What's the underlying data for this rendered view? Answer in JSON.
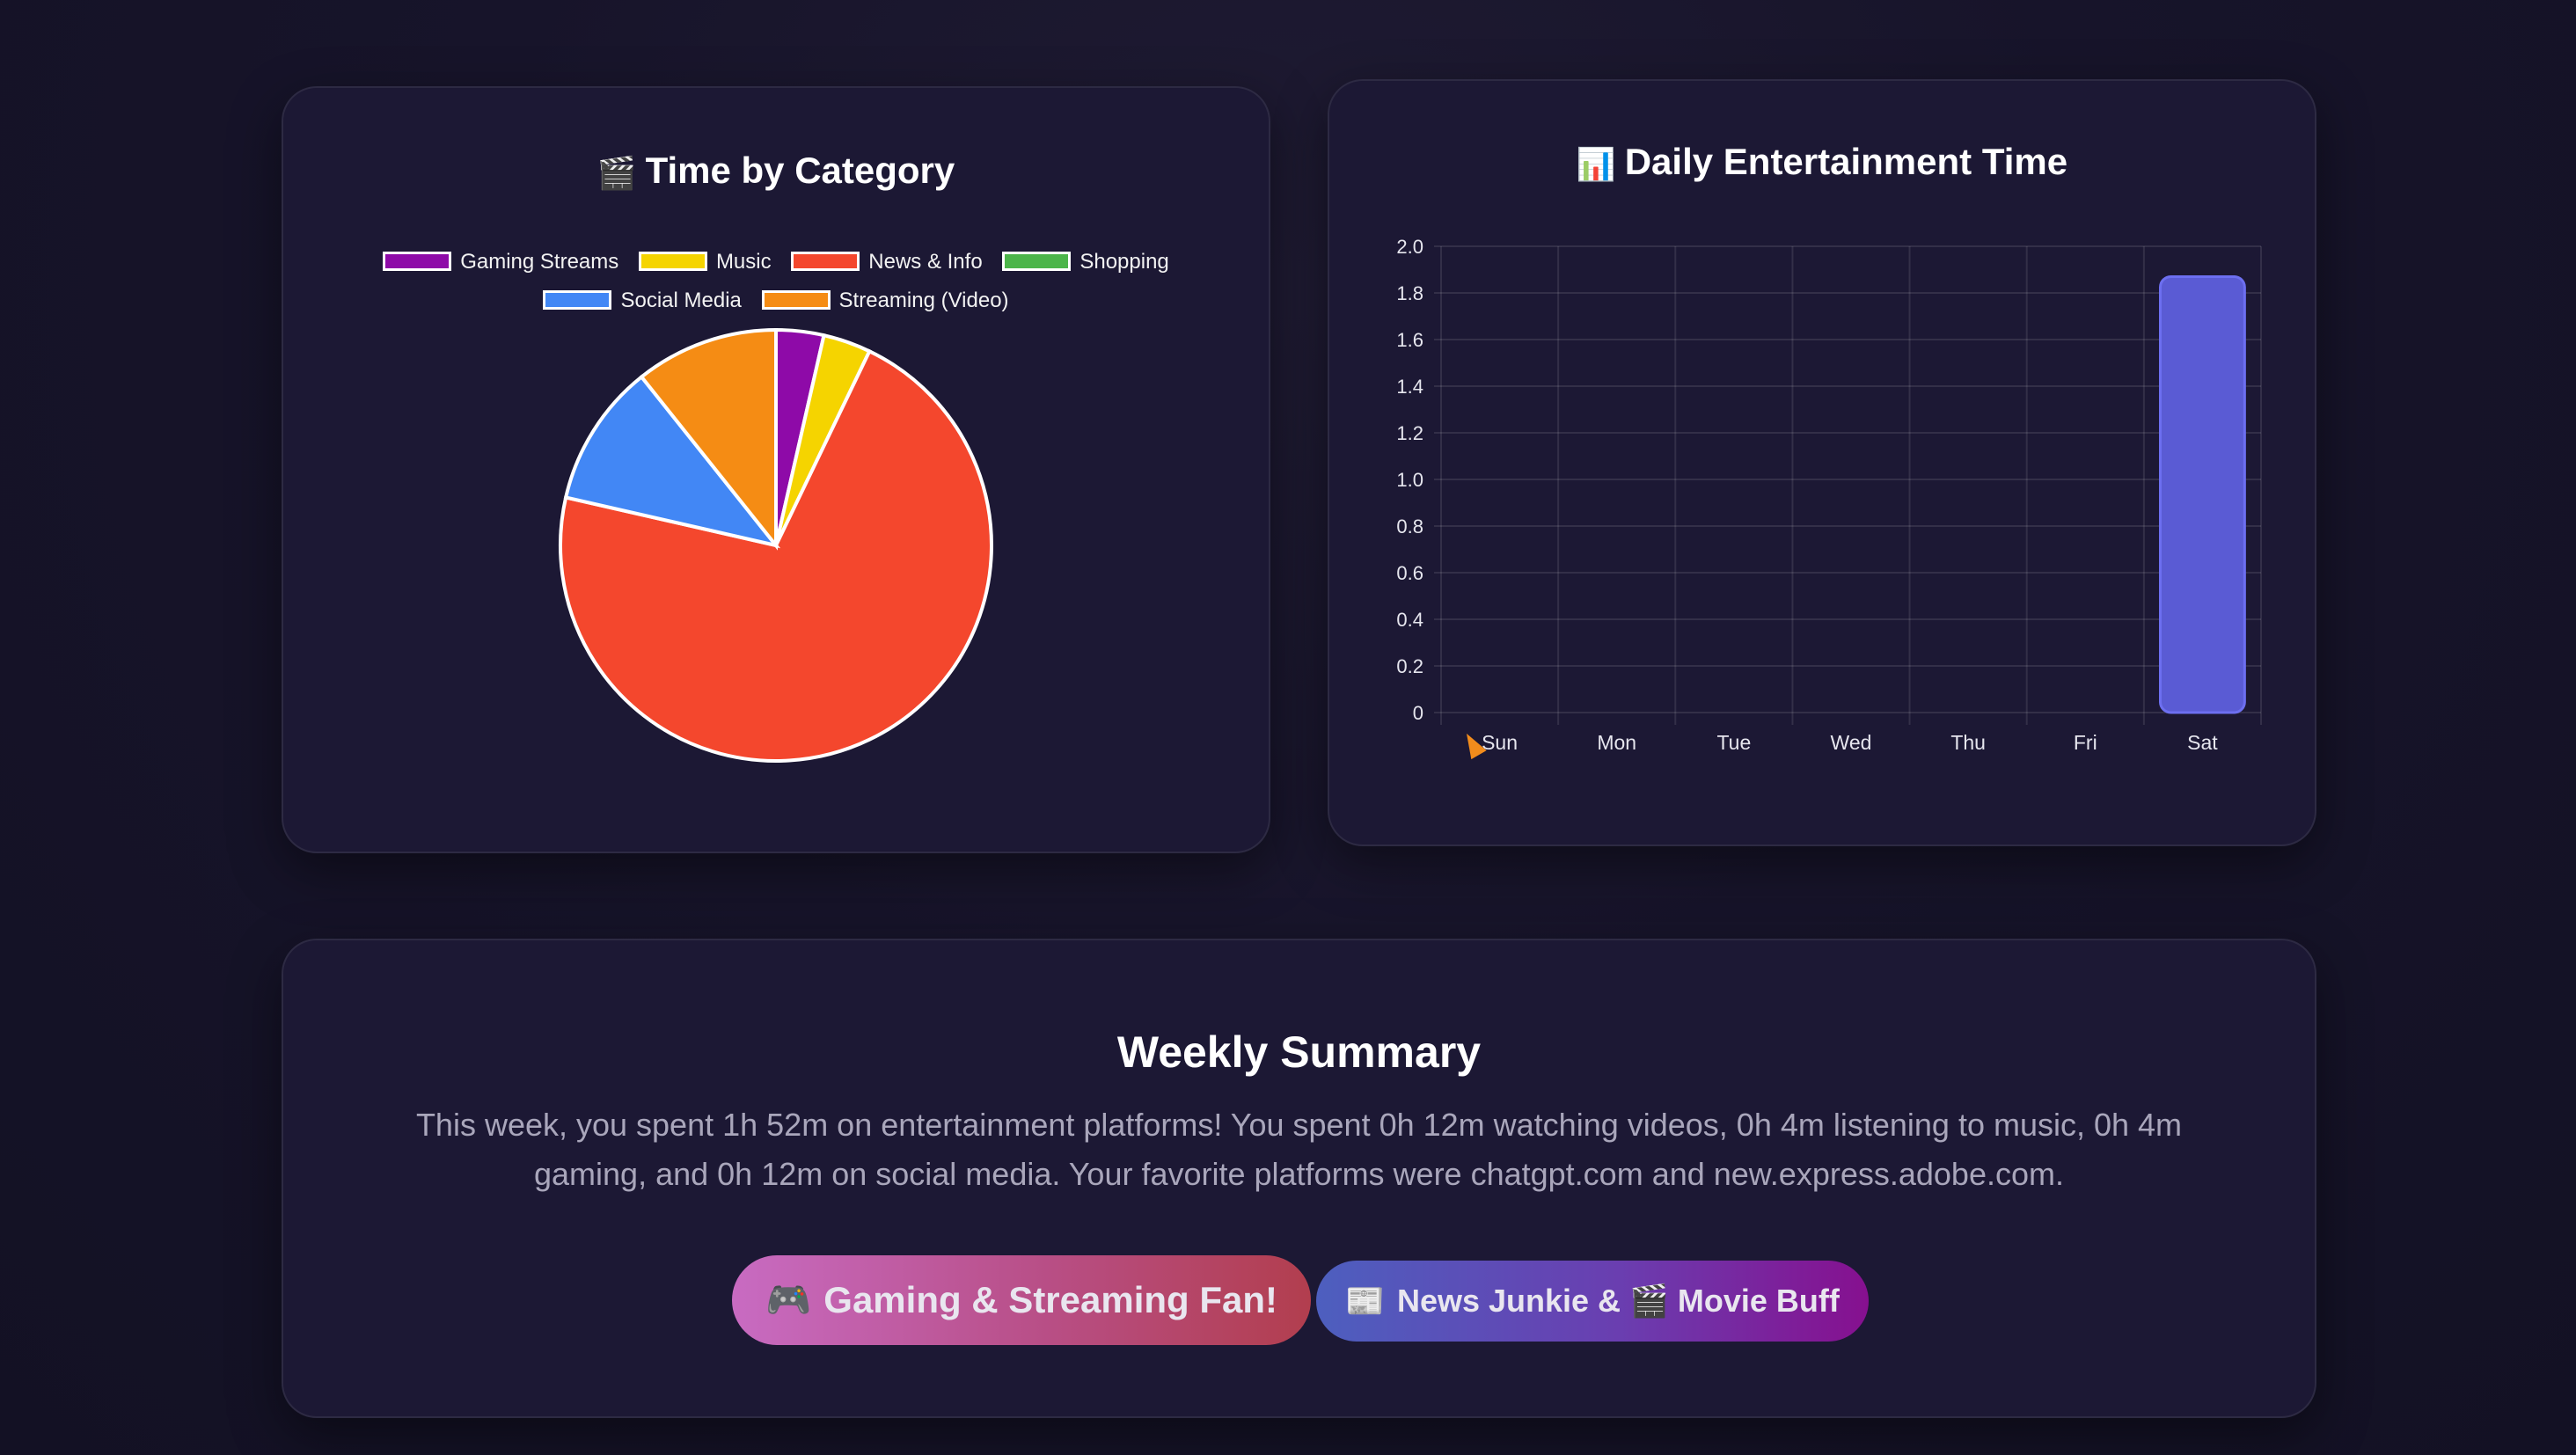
{
  "pie_card": {
    "title": "Time by Category",
    "title_icon": "🎬",
    "legend": [
      {
        "label": "Gaming Streams",
        "color": "#8e0aa8"
      },
      {
        "label": "Music",
        "color": "#f5d400"
      },
      {
        "label": "News & Info",
        "color": "#f4472d"
      },
      {
        "label": "Shopping",
        "color": "#4cb54a"
      },
      {
        "label": "Social Media",
        "color": "#4287f5"
      },
      {
        "label": "Streaming (Video)",
        "color": "#f58c14"
      }
    ]
  },
  "bar_card": {
    "title": "Daily Entertainment Time",
    "title_icon": "📊"
  },
  "chart_data": [
    {
      "type": "pie",
      "title": "Time by Category",
      "categories": [
        "Gaming Streams",
        "Music",
        "News & Info",
        "Shopping",
        "Social Media",
        "Streaming (Video)"
      ],
      "values": [
        4,
        4,
        80,
        0,
        12,
        12
      ],
      "colors": [
        "#8e0aa8",
        "#f5d400",
        "#f4472d",
        "#4cb54a",
        "#4287f5",
        "#f58c14"
      ],
      "legend_position": "top"
    },
    {
      "type": "bar",
      "title": "Daily Entertainment Time",
      "categories": [
        "Sun",
        "Mon",
        "Tue",
        "Wed",
        "Thu",
        "Fri",
        "Sat"
      ],
      "values": [
        0,
        0,
        0,
        0,
        0,
        0,
        1.87
      ],
      "ylim": [
        0,
        2.0
      ],
      "yticks": [
        "0",
        "0.2",
        "0.4",
        "0.6",
        "0.8",
        "1.0",
        "1.2",
        "1.4",
        "1.6",
        "1.8",
        "2.0"
      ],
      "grid": true,
      "color": "#5a5bd4"
    }
  ],
  "summary": {
    "title": "Weekly Summary",
    "text": "This week, you spent 1h 52m on entertainment platforms! You spent 0h 12m watching videos, 0h 4m listening to music, 0h 4m gaming, and 0h 12m on social media. Your favorite platforms were chatgpt.com and new.express.adobe.com.",
    "badges": {
      "gaming": {
        "icon": "🎮",
        "label": "Gaming & Streaming Fan!"
      },
      "news": {
        "icon1": "📰",
        "label1": "News Junkie &",
        "icon2": "🎬",
        "label2": "Movie Buff"
      }
    }
  }
}
